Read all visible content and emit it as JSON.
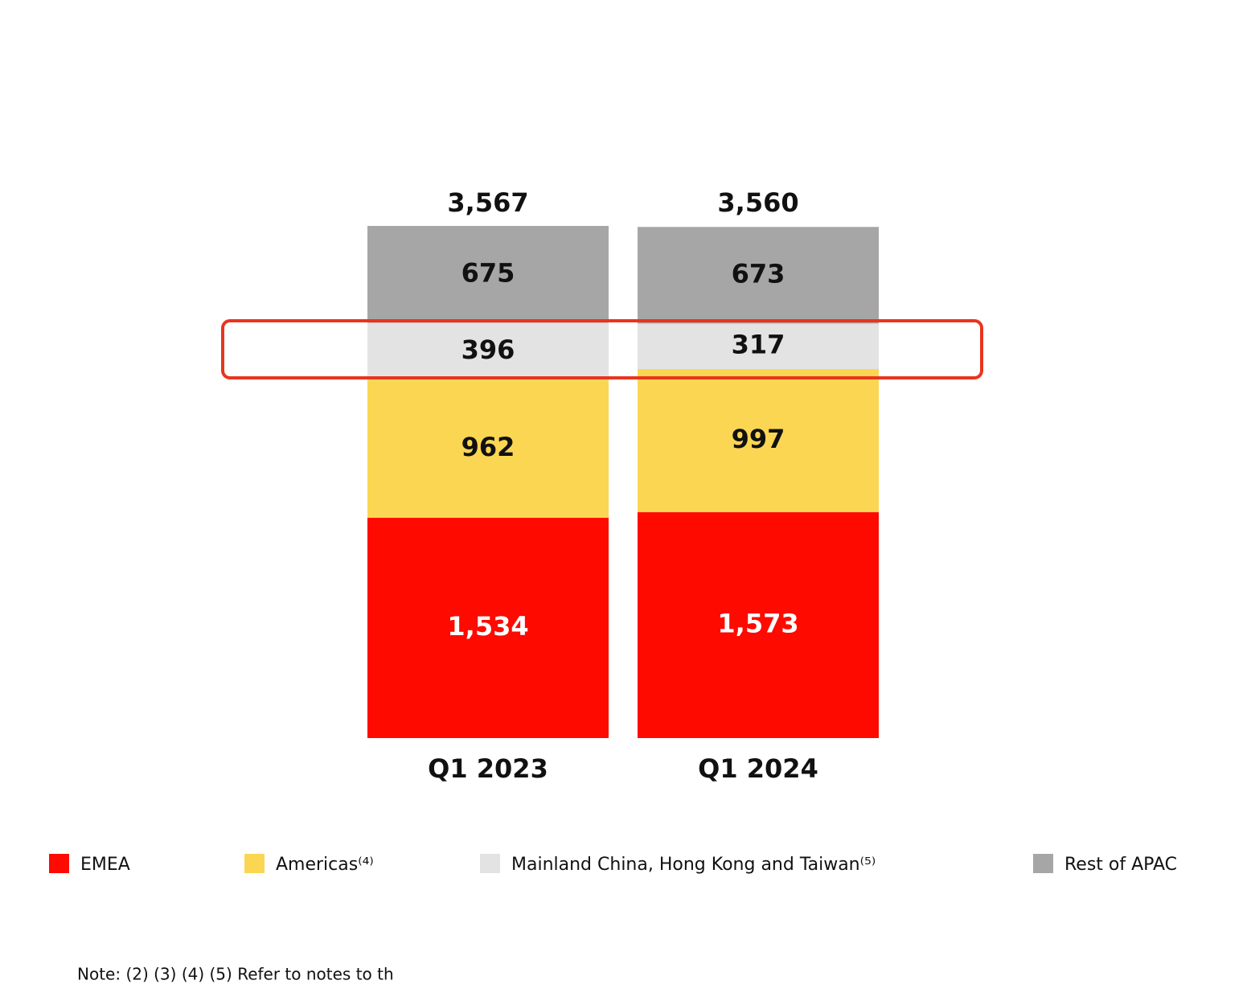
{
  "chart_data": {
    "type": "stacked-bar",
    "categories": [
      "Q1 2023",
      "Q1 2024"
    ],
    "series": [
      {
        "name": "EMEA",
        "color": "#fe0a00",
        "values": [
          1534,
          1573
        ],
        "value_labels": [
          "1,534",
          "1,573"
        ]
      },
      {
        "name": "Americas⁽⁴⁾",
        "color": "#fbd652",
        "values": [
          962,
          997
        ]
      },
      {
        "name": "Mainland China, Hong Kong and Taiwan⁽⁵⁾",
        "color": "#e3e3e3",
        "values": [
          396,
          317
        ]
      },
      {
        "name": "Rest of APAC",
        "color": "#a6a6a6",
        "values": [
          675,
          673
        ]
      }
    ],
    "totals": {
      "values": [
        3567,
        3560
      ],
      "value_labels": [
        "3,567",
        "3,560"
      ]
    },
    "legend": "bottom",
    "note": "Note: (2) (3) (4) (5) Refer to notes to th"
  }
}
